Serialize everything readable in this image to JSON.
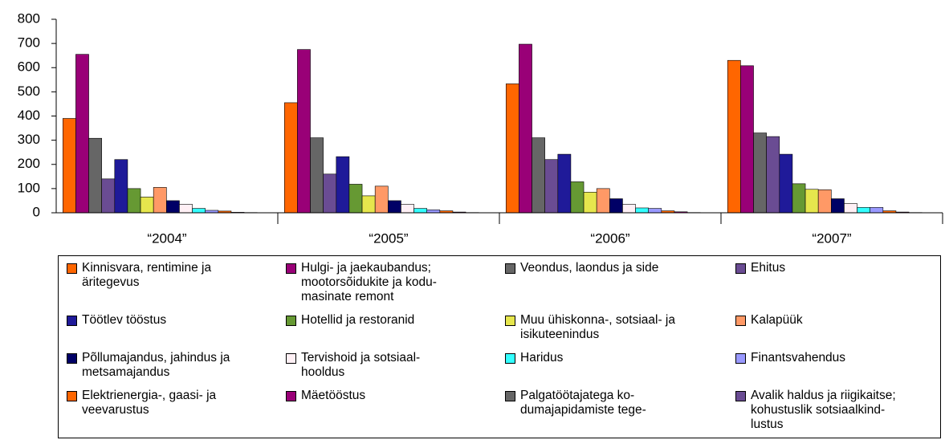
{
  "chart_data": {
    "type": "bar",
    "categories": [
      "“2004”",
      "“2005”",
      "“2006”",
      "“2007”"
    ],
    "ylim": [
      0,
      800
    ],
    "yticks": [
      0,
      100,
      200,
      300,
      400,
      500,
      600,
      700,
      800
    ],
    "grid": false,
    "legend": "bottom",
    "series": [
      {
        "name": "Kinnisvara, rentimine ja\näritegevus",
        "color": "#ff6600",
        "values": [
          390,
          455,
          533,
          630
        ]
      },
      {
        "name": "Hulgi- ja jaekaubandus;\nmootorsõidukite ja kodu-\nmasinate remont",
        "color": "#990077",
        "values": [
          655,
          675,
          697,
          608
        ]
      },
      {
        "name": "Veondus, laondus ja side",
        "color": "#666666",
        "values": [
          308,
          310,
          310,
          330
        ]
      },
      {
        "name": "Ehitus",
        "color": "#6a4c93",
        "values": [
          140,
          160,
          220,
          315
        ]
      },
      {
        "name": "Töötlev tööstus",
        "color": "#1f1a99",
        "values": [
          220,
          232,
          242,
          242
        ]
      },
      {
        "name": "Hotellid ja restoranid",
        "color": "#669933",
        "values": [
          100,
          118,
          128,
          120
        ]
      },
      {
        "name": "Muu ühiskonna-, sotsiaal- ja\nisikuteenindus",
        "color": "#e6e64d",
        "values": [
          65,
          70,
          85,
          97
        ]
      },
      {
        "name": "Kalapüük",
        "color": "#ff9966",
        "values": [
          105,
          110,
          100,
          95
        ]
      },
      {
        "name": "Põllumajandus, jahindus ja\nmetsamajandus",
        "color": "#000066",
        "values": [
          50,
          50,
          58,
          58
        ]
      },
      {
        "name": "Tervishoid ja sotsiaal-\nhooldus",
        "color": "#fff0f5",
        "values": [
          35,
          35,
          35,
          38
        ]
      },
      {
        "name": "Haridus",
        "color": "#33ffff",
        "values": [
          18,
          18,
          20,
          22
        ]
      },
      {
        "name": "Finantsvahendus",
        "color": "#9999ff",
        "values": [
          10,
          12,
          18,
          22
        ]
      },
      {
        "name": "Elektrienergia-, gaasi- ja\nveevarustus",
        "color": "#ff6600",
        "values": [
          7,
          8,
          8,
          8
        ]
      },
      {
        "name": "Mäetööstus",
        "color": "#990077",
        "values": [
          2,
          3,
          4,
          3
        ]
      },
      {
        "name": "Palgatöötajatega ko-\ndumajapidamiste tege-",
        "color": "#666666",
        "values": [
          1,
          1,
          1,
          1
        ]
      },
      {
        "name": "Avalik haldus ja riigikaitse;\nkohustuslik sotsiaalkind-\nlustus",
        "color": "#6a4c93",
        "values": [
          0,
          0,
          0,
          0
        ]
      }
    ]
  }
}
